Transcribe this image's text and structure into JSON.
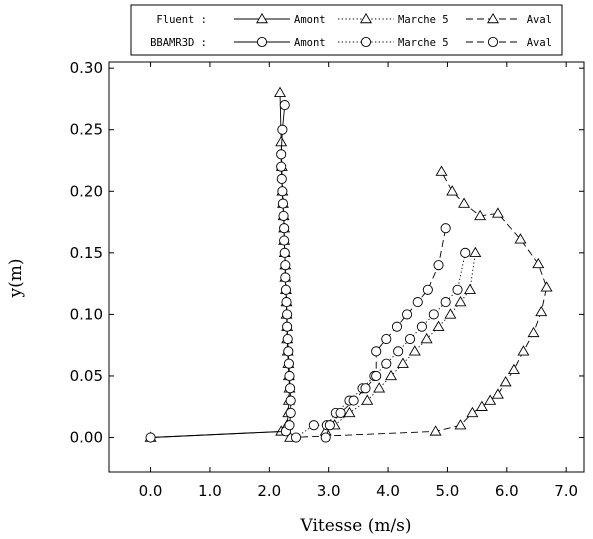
{
  "chart_data": {
    "type": "line",
    "title": "",
    "xlabel": "Vitesse (m/s)",
    "ylabel": "y(m)",
    "xlim": [
      -0.7,
      7.3
    ],
    "ylim": [
      -0.028,
      0.305
    ],
    "xticks": [
      0.0,
      1.0,
      2.0,
      3.0,
      4.0,
      5.0,
      6.0,
      7.0
    ],
    "xtick_labels": [
      "0.0",
      "1.0",
      "2.0",
      "3.0",
      "4.0",
      "5.0",
      "6.0",
      "7.0"
    ],
    "yticks": [
      0.0,
      0.05,
      0.1,
      0.15,
      0.2,
      0.25,
      0.3
    ],
    "ytick_labels": [
      "0.00",
      "0.05",
      "0.10",
      "0.15",
      "0.20",
      "0.25",
      "0.30"
    ],
    "grid": false,
    "legend_position": "top",
    "legend": {
      "rows": [
        {
          "label": "Fluent :",
          "marker": "triangle",
          "entries": [
            "Amont",
            "Marche 5",
            "Aval"
          ]
        },
        {
          "label": "BBAMR3D :",
          "marker": "circle",
          "entries": [
            "Amont",
            "Marche 5",
            "Aval"
          ]
        }
      ]
    },
    "series": [
      {
        "name": "Amont",
        "group": "Fluent",
        "marker": "triangle",
        "linestyle": "solid",
        "x": [
          0.0,
          2.2,
          2.3,
          2.32,
          2.33,
          2.34,
          2.33,
          2.32,
          2.31,
          2.3,
          2.3,
          2.29,
          2.29,
          2.28,
          2.27,
          2.27,
          2.26,
          2.25,
          2.25,
          2.24,
          2.23,
          2.22,
          2.21,
          2.2,
          2.18
        ],
        "y": [
          0.0,
          0.005,
          0.01,
          0.02,
          0.03,
          0.04,
          0.05,
          0.06,
          0.07,
          0.08,
          0.09,
          0.1,
          0.11,
          0.12,
          0.13,
          0.14,
          0.15,
          0.16,
          0.17,
          0.18,
          0.19,
          0.2,
          0.22,
          0.24,
          0.28
        ]
      },
      {
        "name": "Marche 5",
        "group": "Fluent",
        "marker": "triangle",
        "linestyle": "dotted",
        "x": [
          2.95,
          3.1,
          3.35,
          3.65,
          3.85,
          4.05,
          4.25,
          4.45,
          4.65,
          4.85,
          5.05,
          5.22,
          5.38,
          5.47
        ],
        "y": [
          0.005,
          0.01,
          0.02,
          0.03,
          0.04,
          0.05,
          0.06,
          0.07,
          0.08,
          0.09,
          0.1,
          0.11,
          0.12,
          0.15
        ]
      },
      {
        "name": "Aval",
        "group": "Fluent",
        "marker": "triangle",
        "linestyle": "dashed",
        "x": [
          2.35,
          4.8,
          5.22,
          5.42,
          5.58,
          5.72,
          5.85,
          5.98,
          6.12,
          6.28,
          6.45,
          6.58,
          6.67,
          6.53,
          6.23,
          5.85,
          5.55,
          5.28,
          5.08,
          4.9
        ],
        "y": [
          0.0,
          0.005,
          0.01,
          0.02,
          0.025,
          0.03,
          0.035,
          0.045,
          0.055,
          0.07,
          0.085,
          0.102,
          0.122,
          0.141,
          0.161,
          0.182,
          0.18,
          0.19,
          0.2,
          0.216
        ]
      },
      {
        "name": "Amont",
        "group": "BBAMR3D",
        "marker": "circle",
        "linestyle": "solid",
        "x": [
          0.0,
          2.28,
          2.34,
          2.36,
          2.36,
          2.35,
          2.34,
          2.33,
          2.32,
          2.31,
          2.3,
          2.3,
          2.29,
          2.28,
          2.27,
          2.27,
          2.26,
          2.25,
          2.25,
          2.24,
          2.23,
          2.22,
          2.21,
          2.2,
          2.2,
          2.22,
          2.26
        ],
        "y": [
          0.0,
          0.005,
          0.01,
          0.02,
          0.03,
          0.04,
          0.05,
          0.06,
          0.07,
          0.08,
          0.09,
          0.1,
          0.11,
          0.12,
          0.13,
          0.14,
          0.15,
          0.16,
          0.17,
          0.18,
          0.19,
          0.2,
          0.21,
          0.22,
          0.23,
          0.25,
          0.27
        ]
      },
      {
        "name": "Marche 5",
        "group": "BBAMR3D",
        "marker": "circle",
        "linestyle": "dotted",
        "x": [
          2.45,
          2.75,
          2.97,
          3.12,
          3.35,
          3.57,
          3.77,
          3.97,
          4.17,
          4.37,
          4.57,
          4.77,
          4.97,
          5.17,
          5.3
        ],
        "y": [
          0.0,
          0.01,
          0.01,
          0.02,
          0.03,
          0.04,
          0.05,
          0.06,
          0.07,
          0.08,
          0.09,
          0.1,
          0.11,
          0.12,
          0.15
        ]
      },
      {
        "name": "Aval",
        "group": "BBAMR3D",
        "marker": "circle",
        "linestyle": "dashed",
        "x": [
          2.95,
          3.02,
          3.2,
          3.42,
          3.62,
          3.8,
          3.8,
          3.97,
          4.15,
          4.32,
          4.5,
          4.67,
          4.85,
          4.97
        ],
        "y": [
          0.0,
          0.01,
          0.02,
          0.03,
          0.04,
          0.05,
          0.07,
          0.08,
          0.09,
          0.1,
          0.11,
          0.12,
          0.14,
          0.17
        ]
      }
    ]
  }
}
